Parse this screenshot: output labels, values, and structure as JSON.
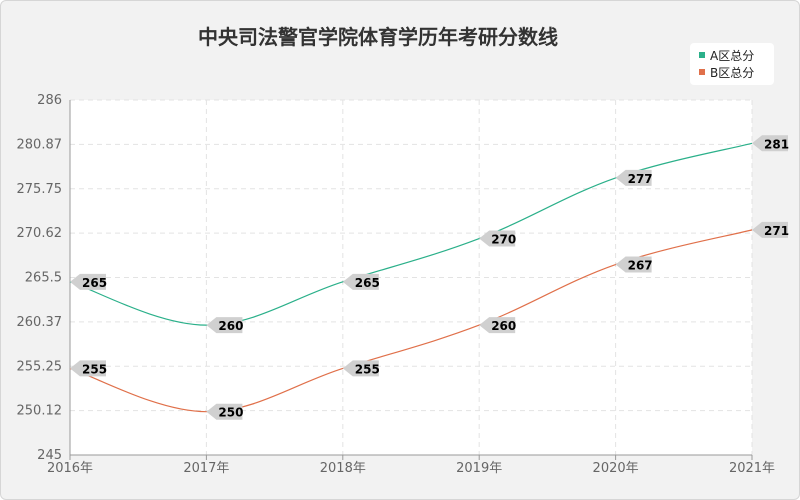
{
  "colors": {
    "background": "#f2f2f2",
    "plot_background": "#ffffff",
    "series_a": "#2bb08a",
    "series_b": "#e0704a",
    "label_box": "#d0d0d0",
    "grid": "#e3e3e3",
    "axis": "#999999"
  },
  "chart_data": {
    "type": "line",
    "title": "中央司法警官学院体育学历年考研分数线",
    "xlabel": "",
    "ylabel": "",
    "categories": [
      "2016年",
      "2017年",
      "2018年",
      "2019年",
      "2020年",
      "2021年"
    ],
    "y_ticks": [
      "286",
      "280.87",
      "275.75",
      "270.62",
      "265.5",
      "260.37",
      "255.25",
      "250.12",
      "245"
    ],
    "ylim": [
      245,
      286
    ],
    "grid": true,
    "legend_position": "top-right",
    "smooth": true,
    "series": [
      {
        "name": "A区总分",
        "values": [
          265,
          260,
          265,
          270,
          277,
          281
        ],
        "color_key": "series_a"
      },
      {
        "name": "B区总分",
        "values": [
          255,
          250,
          255,
          260,
          267,
          271
        ],
        "color_key": "series_b"
      }
    ]
  }
}
